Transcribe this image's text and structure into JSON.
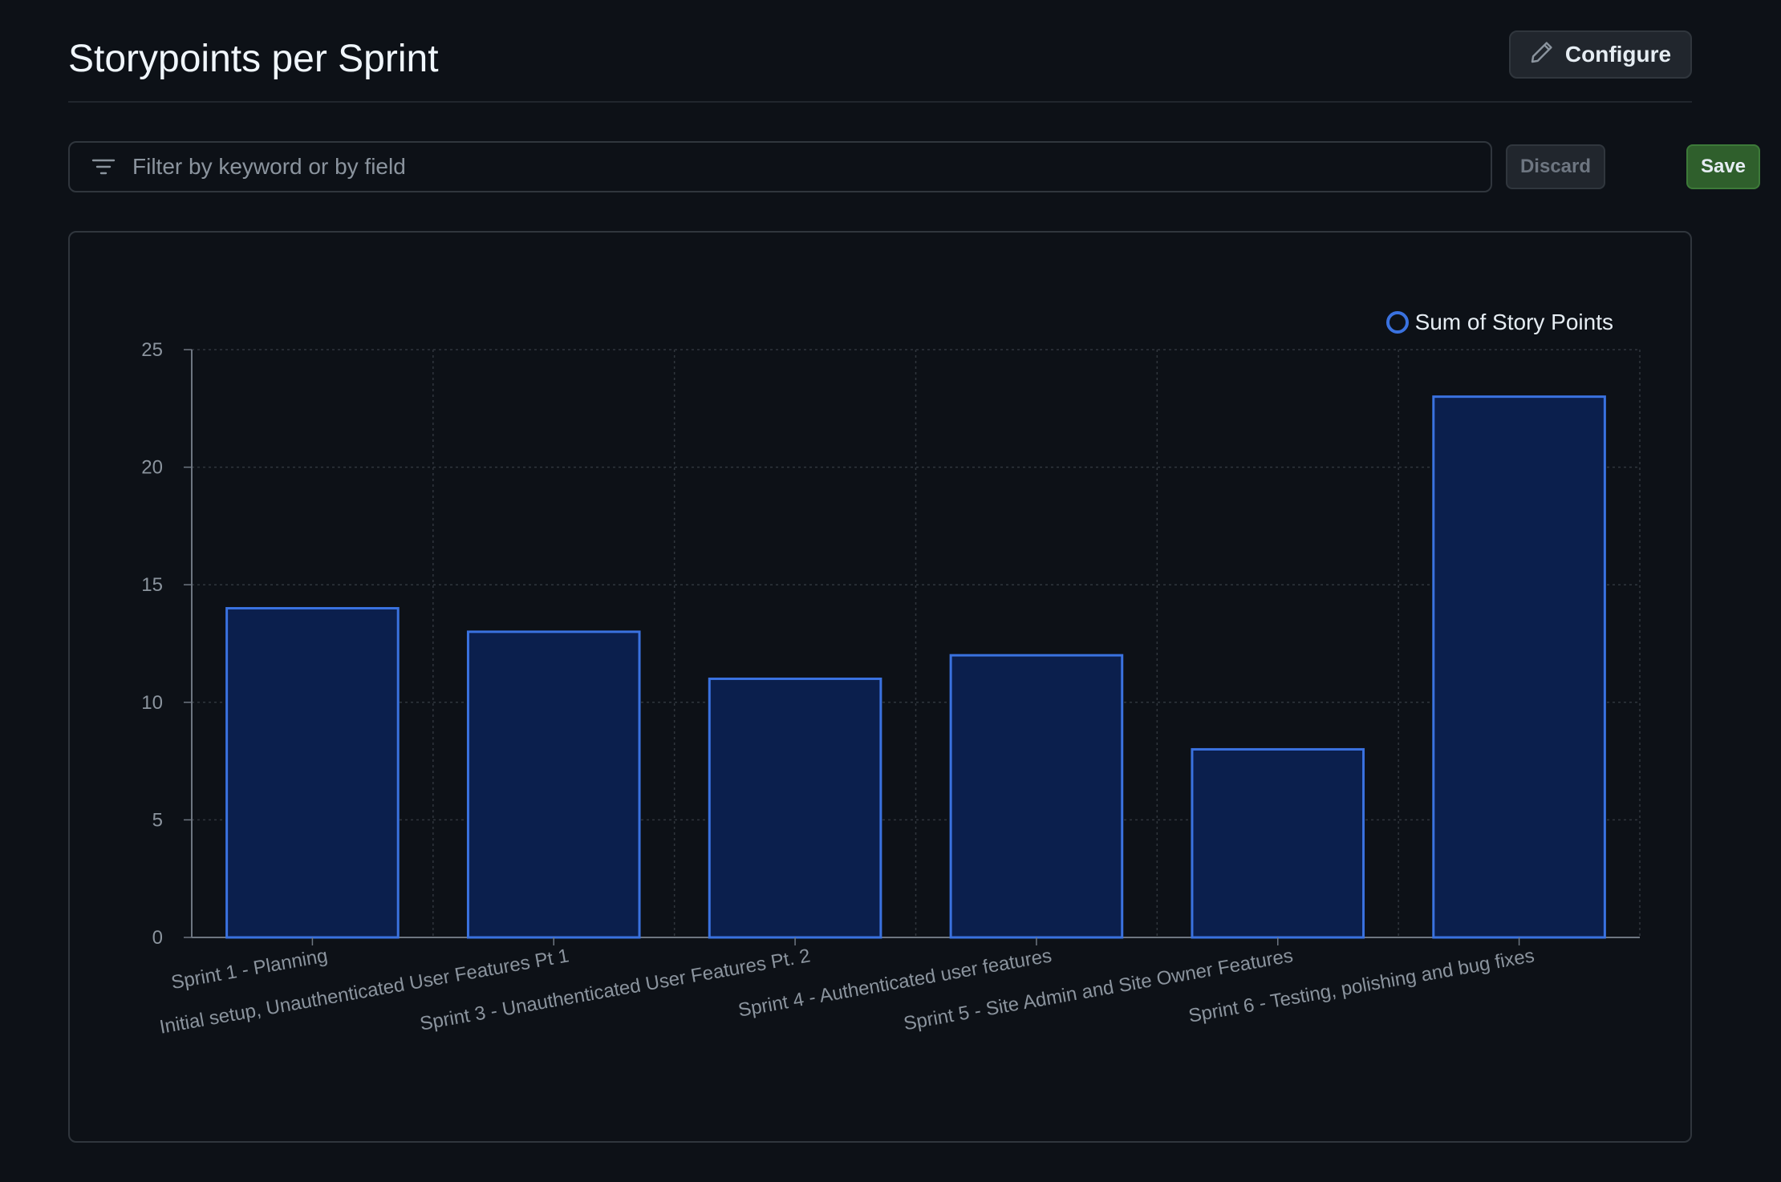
{
  "header": {
    "title": "Storypoints per Sprint",
    "configure_label": "Configure"
  },
  "filter": {
    "placeholder": "Filter by keyword or by field",
    "value": "",
    "discard_label": "Discard",
    "save_label": "Save"
  },
  "icons": {
    "configure": "pencil-icon",
    "filter": "filter-lines-icon"
  },
  "colors": {
    "bar_fill": "#0b1f4d",
    "bar_stroke": "#3a72e0",
    "save_bg": "#2f5f2c",
    "background": "#0d1117"
  },
  "chart_data": {
    "type": "bar",
    "categories": [
      "Sprint 1 - Planning",
      "Initial setup, Unauthenticated User Features Pt 1",
      "Sprint 3 - Unauthenticated User Features Pt. 2",
      "Sprint 4 - Authenticated user features",
      "Sprint 5 - Site Admin and Site Owner Features",
      "Sprint 6 - Testing, polishing and bug fixes"
    ],
    "series": [
      {
        "name": "Sum of Story Points",
        "values": [
          14,
          13,
          11,
          12,
          8,
          23
        ]
      }
    ],
    "ylim": [
      0,
      25
    ],
    "yticks": [
      "0",
      "5",
      "10",
      "15",
      "20",
      "25"
    ],
    "grid": true,
    "legend": "top-right"
  }
}
